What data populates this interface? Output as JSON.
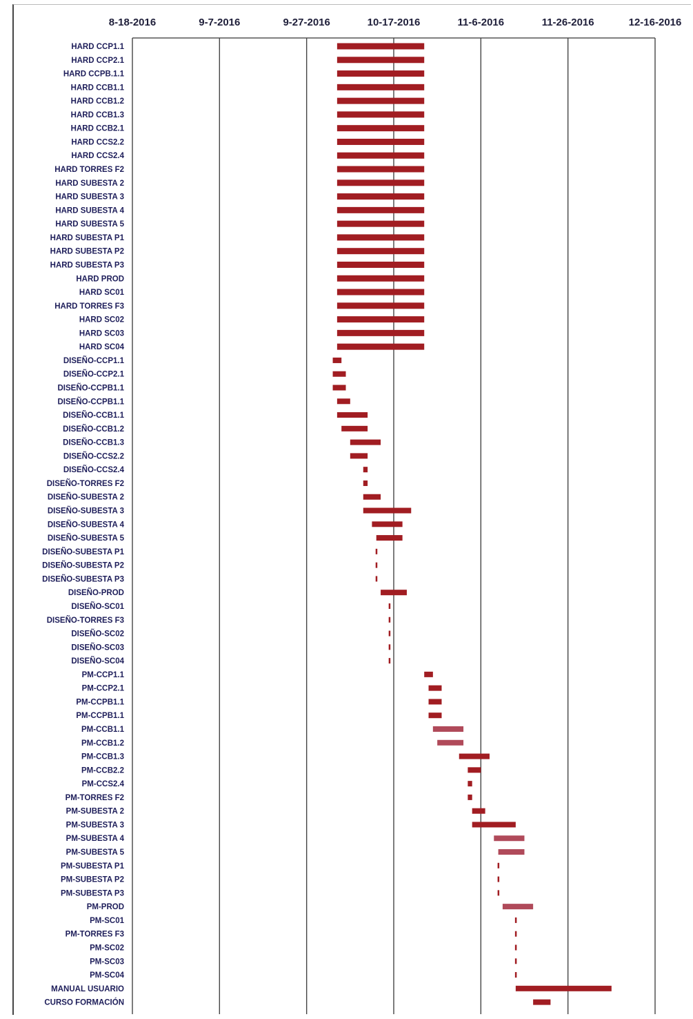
{
  "chart_data": {
    "type": "gantt",
    "title": "",
    "x_axis": {
      "type": "date",
      "range": [
        "2016-08-18",
        "2016-12-16"
      ],
      "ticks": [
        "8-18-2016",
        "9-7-2016",
        "9-27-2016",
        "10-17-2016",
        "11-6-2016",
        "11-26-2016",
        "12-16-2016"
      ],
      "tick_dates": [
        "2016-08-18",
        "2016-09-07",
        "2016-09-27",
        "2016-10-17",
        "2016-11-06",
        "2016-11-26",
        "2016-12-16"
      ],
      "position": "top"
    },
    "grid": "vertical",
    "legend": "none",
    "colors": {
      "bar": "#a11d22",
      "bar_light": "#b04a5a",
      "grid": "#444444",
      "label": "#1e1e5a"
    },
    "tasks": [
      {
        "name": "HARD CCP1.1",
        "start": "2016-10-04",
        "end": "2016-10-24"
      },
      {
        "name": "HARD CCP2.1",
        "start": "2016-10-04",
        "end": "2016-10-24"
      },
      {
        "name": "HARD CCPB.1.1",
        "start": "2016-10-04",
        "end": "2016-10-24"
      },
      {
        "name": "HARD CCB1.1",
        "start": "2016-10-04",
        "end": "2016-10-24"
      },
      {
        "name": "HARD CCB1.2",
        "start": "2016-10-04",
        "end": "2016-10-24"
      },
      {
        "name": "HARD CCB1.3",
        "start": "2016-10-04",
        "end": "2016-10-24"
      },
      {
        "name": "HARD CCB2.1",
        "start": "2016-10-04",
        "end": "2016-10-24"
      },
      {
        "name": "HARD CCS2.2",
        "start": "2016-10-04",
        "end": "2016-10-24"
      },
      {
        "name": "HARD CCS2.4",
        "start": "2016-10-04",
        "end": "2016-10-24"
      },
      {
        "name": "HARD TORRES F2",
        "start": "2016-10-04",
        "end": "2016-10-24"
      },
      {
        "name": "HARD SUBESTA 2",
        "start": "2016-10-04",
        "end": "2016-10-24"
      },
      {
        "name": "HARD SUBESTA 3",
        "start": "2016-10-04",
        "end": "2016-10-24"
      },
      {
        "name": "HARD SUBESTA 4",
        "start": "2016-10-04",
        "end": "2016-10-24"
      },
      {
        "name": "HARD SUBESTA 5",
        "start": "2016-10-04",
        "end": "2016-10-24"
      },
      {
        "name": "HARD SUBESTA P1",
        "start": "2016-10-04",
        "end": "2016-10-24"
      },
      {
        "name": "HARD SUBESTA P2",
        "start": "2016-10-04",
        "end": "2016-10-24"
      },
      {
        "name": "HARD SUBESTA P3",
        "start": "2016-10-04",
        "end": "2016-10-24"
      },
      {
        "name": "HARD PROD",
        "start": "2016-10-04",
        "end": "2016-10-24"
      },
      {
        "name": "HARD SC01",
        "start": "2016-10-04",
        "end": "2016-10-24"
      },
      {
        "name": "HARD TORRES F3",
        "start": "2016-10-04",
        "end": "2016-10-24"
      },
      {
        "name": "HARD SC02",
        "start": "2016-10-04",
        "end": "2016-10-24"
      },
      {
        "name": "HARD SC03",
        "start": "2016-10-04",
        "end": "2016-10-24"
      },
      {
        "name": "HARD SC04",
        "start": "2016-10-04",
        "end": "2016-10-24"
      },
      {
        "name": "DISEÑO-CCP1.1",
        "start": "2016-10-03",
        "end": "2016-10-05"
      },
      {
        "name": "DISEÑO-CCP2.1",
        "start": "2016-10-03",
        "end": "2016-10-06"
      },
      {
        "name": "DISEÑO-CCPB1.1",
        "start": "2016-10-03",
        "end": "2016-10-06"
      },
      {
        "name": "DISEÑO-CCPB1.1",
        "start": "2016-10-04",
        "end": "2016-10-07"
      },
      {
        "name": "DISEÑO-CCB1.1",
        "start": "2016-10-04",
        "end": "2016-10-11"
      },
      {
        "name": "DISEÑO-CCB1.2",
        "start": "2016-10-05",
        "end": "2016-10-11"
      },
      {
        "name": "DISEÑO-CCB1.3",
        "start": "2016-10-07",
        "end": "2016-10-14"
      },
      {
        "name": "DISEÑO-CCS2.2",
        "start": "2016-10-07",
        "end": "2016-10-11"
      },
      {
        "name": "DISEÑO-CCS2.4",
        "start": "2016-10-10",
        "end": "2016-10-11"
      },
      {
        "name": "DISEÑO-TORRES F2",
        "start": "2016-10-10",
        "end": "2016-10-11"
      },
      {
        "name": "DISEÑO-SUBESTA 2",
        "start": "2016-10-10",
        "end": "2016-10-14"
      },
      {
        "name": "DISEÑO-SUBESTA 3",
        "start": "2016-10-10",
        "end": "2016-10-21"
      },
      {
        "name": "DISEÑO-SUBESTA 4",
        "start": "2016-10-12",
        "end": "2016-10-19"
      },
      {
        "name": "DISEÑO-SUBESTA 5",
        "start": "2016-10-13",
        "end": "2016-10-19"
      },
      {
        "name": "DISEÑO-SUBESTA P1",
        "start": "2016-10-13",
        "end": "2016-10-13"
      },
      {
        "name": "DISEÑO-SUBESTA P2",
        "start": "2016-10-13",
        "end": "2016-10-13"
      },
      {
        "name": "DISEÑO-SUBESTA P3",
        "start": "2016-10-13",
        "end": "2016-10-13"
      },
      {
        "name": "DISEÑO-PROD",
        "start": "2016-10-14",
        "end": "2016-10-20"
      },
      {
        "name": "DISEÑO-SC01",
        "start": "2016-10-16",
        "end": "2016-10-16"
      },
      {
        "name": "DISEÑO-TORRES F3",
        "start": "2016-10-16",
        "end": "2016-10-16"
      },
      {
        "name": "DISEÑO-SC02",
        "start": "2016-10-16",
        "end": "2016-10-16"
      },
      {
        "name": "DISEÑO-SC03",
        "start": "2016-10-16",
        "end": "2016-10-16"
      },
      {
        "name": "DISEÑO-SC04",
        "start": "2016-10-16",
        "end": "2016-10-16"
      },
      {
        "name": "PM-CCP1.1",
        "start": "2016-10-24",
        "end": "2016-10-26"
      },
      {
        "name": "PM-CCP2.1",
        "start": "2016-10-25",
        "end": "2016-10-28"
      },
      {
        "name": "PM-CCPB1.1",
        "start": "2016-10-25",
        "end": "2016-10-28"
      },
      {
        "name": "PM-CCPB1.1",
        "start": "2016-10-25",
        "end": "2016-10-28"
      },
      {
        "name": "PM-CCB1.1",
        "start": "2016-10-26",
        "end": "2016-11-02"
      },
      {
        "name": "PM-CCB1.2",
        "start": "2016-10-27",
        "end": "2016-11-02"
      },
      {
        "name": "PM-CCB1.3",
        "start": "2016-11-01",
        "end": "2016-11-08"
      },
      {
        "name": "PM-CCB2.2",
        "start": "2016-11-03",
        "end": "2016-11-06"
      },
      {
        "name": "PM-CCS2.4",
        "start": "2016-11-03",
        "end": "2016-11-04"
      },
      {
        "name": "PM-TORRES F2",
        "start": "2016-11-03",
        "end": "2016-11-04"
      },
      {
        "name": "PM-SUBESTA 2",
        "start": "2016-11-04",
        "end": "2016-11-07"
      },
      {
        "name": "PM-SUBESTA 3",
        "start": "2016-11-04",
        "end": "2016-11-14"
      },
      {
        "name": "PM-SUBESTA 4",
        "start": "2016-11-09",
        "end": "2016-11-16"
      },
      {
        "name": "PM-SUBESTA 5",
        "start": "2016-11-10",
        "end": "2016-11-16"
      },
      {
        "name": "PM-SUBESTA P1",
        "start": "2016-11-10",
        "end": "2016-11-10"
      },
      {
        "name": "PM-SUBESTA P2",
        "start": "2016-11-10",
        "end": "2016-11-10"
      },
      {
        "name": "PM-SUBESTA P3",
        "start": "2016-11-10",
        "end": "2016-11-10"
      },
      {
        "name": "PM-PROD",
        "start": "2016-11-11",
        "end": "2016-11-18"
      },
      {
        "name": "PM-SC01",
        "start": "2016-11-14",
        "end": "2016-11-14"
      },
      {
        "name": "PM-TORRES F3",
        "start": "2016-11-14",
        "end": "2016-11-14"
      },
      {
        "name": "PM-SC02",
        "start": "2016-11-14",
        "end": "2016-11-14"
      },
      {
        "name": "PM-SC03",
        "start": "2016-11-14",
        "end": "2016-11-14"
      },
      {
        "name": "PM-SC04",
        "start": "2016-11-14",
        "end": "2016-11-14"
      },
      {
        "name": "MANUAL USUARIO",
        "start": "2016-11-14",
        "end": "2016-12-06"
      },
      {
        "name": "CURSO FORMACIÓN",
        "start": "2016-11-18",
        "end": "2016-11-22"
      }
    ]
  }
}
